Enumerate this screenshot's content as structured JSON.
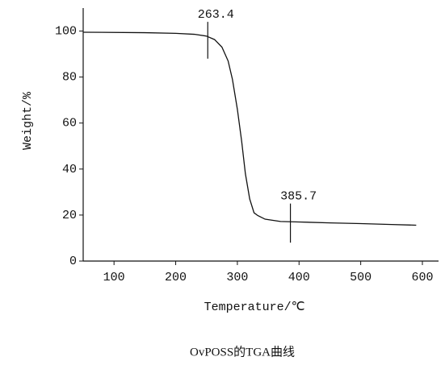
{
  "chart_data": {
    "type": "line",
    "x_label": "Temperature/℃",
    "y_label": "Weight/%",
    "caption": "OvPOSS的TGA曲线",
    "x": [
      50,
      150,
      200,
      230,
      250,
      263,
      275,
      285,
      292,
      300,
      307,
      313,
      320,
      327,
      333,
      345,
      370,
      400,
      450,
      500,
      550,
      590
    ],
    "series": [
      {
        "color": "#111111",
        "values": [
          99.5,
          99.3,
          99,
          98.6,
          97.8,
          96.3,
          93,
          87,
          79,
          66,
          52,
          38,
          27,
          21,
          19.8,
          18.2,
          17.2,
          17,
          16.6,
          16.3,
          15.9,
          15.6
        ]
      }
    ],
    "annotations": [
      {
        "label": "263.4",
        "x": 252,
        "y": [
          88,
          104
        ]
      },
      {
        "label": "385.7",
        "x": 386,
        "y": [
          8,
          25
        ]
      }
    ],
    "xlim": [
      50,
      600
    ],
    "ylim": [
      0,
      110
    ],
    "xticks": [
      100,
      200,
      300,
      400,
      500,
      600
    ],
    "yticks": [
      0,
      20,
      40,
      60,
      80,
      100
    ],
    "grid": false
  }
}
